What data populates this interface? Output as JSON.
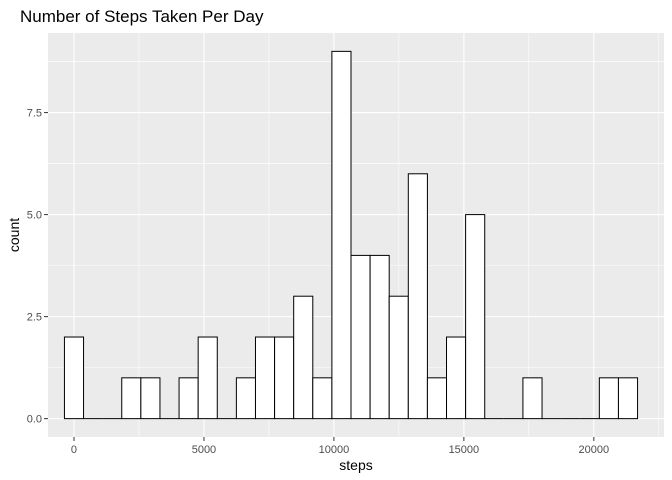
{
  "chart_data": {
    "type": "bar",
    "title": "Number of Steps Taken Per Day",
    "xlabel": "steps",
    "ylabel": "count",
    "bin_width": 735,
    "xlim": [
      -1000,
      22700
    ],
    "ylim": [
      -0.45,
      9.45
    ],
    "x_ticks": [
      0,
      5000,
      10000,
      15000,
      20000
    ],
    "x_tick_labels": [
      "0",
      "5000",
      "10000",
      "15000",
      "20000"
    ],
    "y_ticks": [
      0,
      2.5,
      5,
      7.5
    ],
    "y_tick_labels": [
      "0.0",
      "2.5",
      "5.0",
      "7.5"
    ],
    "grid": true,
    "background": "#ebebeb",
    "bar_fill": "#ffffff",
    "bar_stroke": "#000000",
    "bin_centers": [
      0,
      735,
      1470,
      2205,
      2940,
      3675,
      4410,
      5145,
      5880,
      6615,
      7350,
      8085,
      8820,
      9555,
      10290,
      11025,
      11760,
      12495,
      13230,
      13965,
      14700,
      15435,
      16170,
      16905,
      17640,
      18375,
      19110,
      19845,
      20580,
      21315
    ],
    "counts": [
      2,
      0,
      0,
      1,
      1,
      0,
      1,
      2,
      0,
      1,
      2,
      2,
      3,
      1,
      9,
      4,
      4,
      3,
      6,
      1,
      2,
      5,
      0,
      0,
      1,
      0,
      0,
      0,
      1,
      1
    ]
  }
}
